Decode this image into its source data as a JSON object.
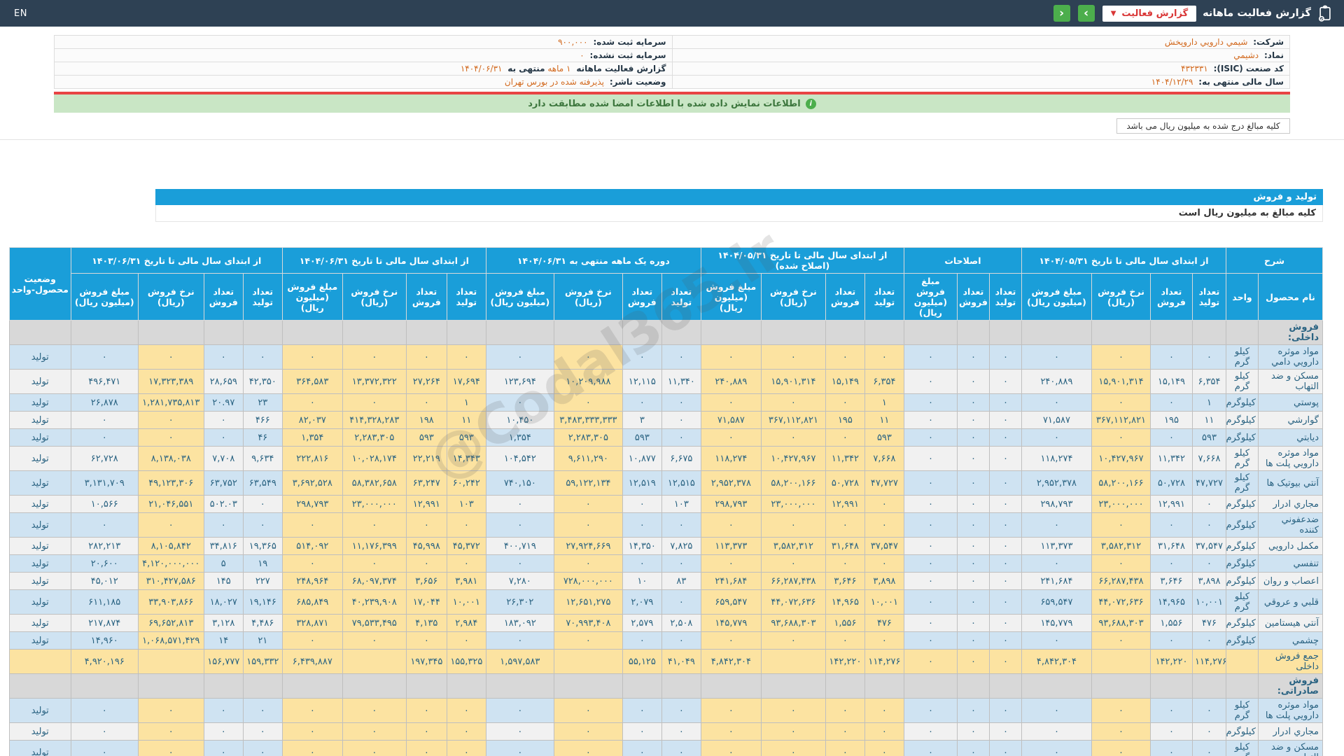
{
  "header": {
    "title": "گزارش فعالیت ماهانه",
    "dropdown_label": "گزارش فعالیت",
    "nav_next": "›",
    "nav_prev": "‹",
    "lang": "EN"
  },
  "company_info": {
    "rows": [
      {
        "r_label": "شرکت:",
        "r_value": "شیمي دارویي داروپخش",
        "l_label": "سرمایه ثبت شده:",
        "l_value": "۹۰۰,۰۰۰"
      },
      {
        "r_label": "نماد:",
        "r_value": "دشیمي",
        "l_label": "سرمایه ثبت نشده:",
        "l_value": "۰"
      },
      {
        "r_label": "کد صنعت (ISIC):",
        "r_value": "۴۳۲۳۳۱",
        "l_label": "گزارش فعالیت ماهانه",
        "l_value": "۱ ماهه",
        "l_label2": "منتهی به",
        "l_value2": "۱۴۰۴/۰۶/۳۱"
      },
      {
        "r_label": "سال مالی منتهی به:",
        "r_value": "۱۴۰۴/۱۲/۲۹",
        "l_label": "وضعیت ناشر:",
        "l_value": "پذیرفته شده در بورس تهران"
      }
    ]
  },
  "notices": {
    "signature": "اطلاعات نمایش داده شده با اطلاعات امضا شده مطابقت دارد",
    "million_entry": "کلیه مبالغ درج شده به میلیون ریال می باشد"
  },
  "section": {
    "title": "تولید و فروش",
    "subtitle": "کلیه مبالغ به میلیون ریال است"
  },
  "watermark": "@Codal365.ir",
  "colors": {
    "topbar": "#2e4154",
    "accent_blue": "#1a9ed9",
    "button_green": "#4cae4c",
    "alert_red": "#e84444",
    "value_orange": "#d2691e",
    "row_blue": "#cfe3f2",
    "highlight_yellow": "#fce3a1",
    "notice_green": "#c9e6c5"
  },
  "table": {
    "groups": [
      {
        "label": "شرح",
        "sub": [
          "نام محصول",
          "واحد"
        ]
      },
      {
        "label": "از ابتدای سال مالی تا تاریخ ۱۴۰۴/۰۵/۳۱",
        "sub": [
          "تعداد تولید",
          "تعداد فروش",
          "نرخ فروش (ریال)",
          "مبلغ فروش (میلیون ریال)"
        ]
      },
      {
        "label": "اصلاحات",
        "sub": [
          "تعداد تولید",
          "تعداد فروش",
          "مبلغ فروش (میلیون ریال)"
        ]
      },
      {
        "label": "از ابتدای سال مالی تا تاریخ ۱۴۰۴/۰۵/۳۱ (اصلاح شده)",
        "sub": [
          "تعداد تولید",
          "تعداد فروش",
          "نرخ فروش (ریال)",
          "مبلغ فروش (میلیون ریال)"
        ]
      },
      {
        "label": "دوره یک ماهه منتهی به ۱۴۰۴/۰۶/۳۱",
        "sub": [
          "تعداد تولید",
          "تعداد فروش",
          "نرخ فروش (ریال)",
          "مبلغ فروش (میلیون ریال)"
        ]
      },
      {
        "label": "از ابتدای سال مالی تا تاریخ ۱۴۰۴/۰۶/۳۱",
        "sub": [
          "تعداد تولید",
          "تعداد فروش",
          "نرخ فروش (ریال)",
          "مبلغ فروش (میلیون ریال)"
        ]
      },
      {
        "label": "از ابتدای سال مالی تا تاریخ ۱۴۰۳/۰۶/۳۱",
        "sub": [
          "تعداد تولید",
          "تعداد فروش",
          "نرخ فروش (ریال)",
          "مبلغ فروش (میلیون ریال)"
        ]
      },
      {
        "label": "وضعیت محصول-واحد",
        "sub": []
      }
    ],
    "rows": [
      {
        "t": "sec",
        "name": "فروش داخلی:"
      },
      {
        "t": "d",
        "shade": "b",
        "name": "مواد موثره دارویي دامي",
        "unit": "کیلو گرم",
        "st": "تولید",
        "c": [
          "۰",
          "۰",
          "۰",
          "۰",
          "۰",
          "۰",
          "۰",
          "۰",
          "۰",
          "۰",
          "۰",
          "۰",
          "۰",
          "۰",
          "۰",
          "۰",
          "۰",
          "۰",
          "۰",
          "۰",
          "۰",
          "۰",
          "۰"
        ]
      },
      {
        "t": "d",
        "shade": "w",
        "name": "مسکن و ضد التهاب",
        "unit": "کیلو گرم",
        "st": "تولید",
        "c": [
          "۶,۳۵۴",
          "۱۵,۱۴۹",
          "۱۵,۹۰۱,۳۱۴",
          "۲۴۰,۸۸۹",
          "۰",
          "۰",
          "۰",
          "۶,۳۵۴",
          "۱۵,۱۴۹",
          "۱۵,۹۰۱,۳۱۴",
          "۲۴۰,۸۸۹",
          "۱۱,۳۴۰",
          "۱۲,۱۱۵",
          "۱۰,۲۰۹,۹۸۸",
          "۱۲۳,۶۹۴",
          "۱۷,۶۹۴",
          "۲۷,۲۶۴",
          "۱۳,۳۷۲,۳۲۲",
          "۳۶۴,۵۸۳",
          "۴۲,۳۵۰",
          "۲۸,۶۵۹",
          "۱۷,۳۲۳,۳۸۹",
          "۴۹۶,۴۷۱"
        ]
      },
      {
        "t": "d",
        "shade": "b",
        "name": "پوستي",
        "unit": "کیلوگرم",
        "st": "تولید",
        "c": [
          "۱",
          "۰",
          "۰",
          "۰",
          "۰",
          "۰",
          "۰",
          "۱",
          "۰",
          "۰",
          "۰",
          "۰",
          "۰",
          "۰",
          "۰",
          "۱",
          "۰",
          "۰",
          "۰",
          "۲۳",
          "۲۰.۹۷",
          "۱,۲۸۱,۷۳۵,۸۱۳",
          "۲۶,۸۷۸"
        ]
      },
      {
        "t": "d",
        "shade": "w",
        "name": "گوارشي",
        "unit": "کیلوگرم",
        "st": "تولید",
        "c": [
          "۱۱",
          "۱۹۵",
          "۳۶۷,۱۱۲,۸۲۱",
          "۷۱,۵۸۷",
          "۰",
          "۰",
          "۰",
          "۱۱",
          "۱۹۵",
          "۳۶۷,۱۱۲,۸۲۱",
          "۷۱,۵۸۷",
          "۰",
          "۳",
          "۳,۴۸۳,۳۳۳,۳۳۳",
          "۱۰,۴۵۰",
          "۱۱",
          "۱۹۸",
          "۴۱۴,۳۲۸,۲۸۳",
          "۸۲,۰۳۷",
          "۴۶۶",
          "۰",
          "۰",
          "۰"
        ]
      },
      {
        "t": "d",
        "shade": "b",
        "name": "دیابتي",
        "unit": "کیلوگرم",
        "st": "تولید",
        "c": [
          "۵۹۳",
          "۰",
          "۰",
          "۰",
          "۰",
          "۰",
          "۰",
          "۵۹۳",
          "۰",
          "۰",
          "۰",
          "۰",
          "۵۹۳",
          "۲,۲۸۳,۳۰۵",
          "۱,۳۵۴",
          "۵۹۳",
          "۵۹۳",
          "۲,۲۸۳,۳۰۵",
          "۱,۳۵۴",
          "۴۶",
          "۰",
          "۰",
          "۰"
        ]
      },
      {
        "t": "d",
        "shade": "w",
        "name": "مواد موثره دارویي پلت ها",
        "unit": "کیلو گرم",
        "st": "تولید",
        "c": [
          "۷,۶۶۸",
          "۱۱,۳۴۲",
          "۱۰,۴۲۷,۹۶۷",
          "۱۱۸,۲۷۴",
          "۰",
          "۰",
          "۰",
          "۷,۶۶۸",
          "۱۱,۳۴۲",
          "۱۰,۴۲۷,۹۶۷",
          "۱۱۸,۲۷۴",
          "۶,۶۷۵",
          "۱۰,۸۷۷",
          "۹,۶۱۱,۲۹۰",
          "۱۰۴,۵۴۲",
          "۱۴,۳۴۳",
          "۲۲,۲۱۹",
          "۱۰,۰۲۸,۱۷۴",
          "۲۲۲,۸۱۶",
          "۹,۶۳۴",
          "۷,۷۰۸",
          "۸,۱۳۸,۰۳۸",
          "۶۲,۷۲۸"
        ]
      },
      {
        "t": "d",
        "shade": "b",
        "name": "آنتي بیوتیک ها",
        "unit": "کیلو گرم",
        "st": "تولید",
        "c": [
          "۴۷,۷۲۷",
          "۵۰,۷۲۸",
          "۵۸,۲۰۰,۱۶۶",
          "۲,۹۵۲,۳۷۸",
          "۰",
          "۰",
          "۰",
          "۴۷,۷۲۷",
          "۵۰,۷۲۸",
          "۵۸,۲۰۰,۱۶۶",
          "۲,۹۵۲,۳۷۸",
          "۱۲,۵۱۵",
          "۱۲,۵۱۹",
          "۵۹,۱۲۲,۱۳۴",
          "۷۴۰,۱۵۰",
          "۶۰,۲۴۲",
          "۶۳,۲۴۷",
          "۵۸,۳۸۲,۶۵۸",
          "۳,۶۹۲,۵۲۸",
          "۶۳,۵۴۹",
          "۶۳,۷۵۲",
          "۴۹,۱۲۳,۳۰۶",
          "۳,۱۳۱,۷۰۹"
        ]
      },
      {
        "t": "d",
        "shade": "w",
        "name": "مجاري ادرار",
        "unit": "کیلوگرم",
        "st": "تولید",
        "c": [
          "۰",
          "۱۲,۹۹۱",
          "۲۳,۰۰۰,۰۰۰",
          "۲۹۸,۷۹۳",
          "۰",
          "۰",
          "۰",
          "۰",
          "۱۲,۹۹۱",
          "۲۳,۰۰۰,۰۰۰",
          "۲۹۸,۷۹۳",
          "۱۰۳",
          "۰",
          "۰",
          "۰",
          "۱۰۳",
          "۱۲,۹۹۱",
          "۲۳,۰۰۰,۰۰۰",
          "۲۹۸,۷۹۳",
          "۰",
          "۵۰۲.۰۳",
          "۲۱,۰۴۶,۵۵۱",
          "۱۰,۵۶۶"
        ]
      },
      {
        "t": "d",
        "shade": "b",
        "name": "ضدعفوني کننده",
        "unit": "کیلوگرم",
        "st": "تولید",
        "c": [
          "۰",
          "۰",
          "۰",
          "۰",
          "۰",
          "۰",
          "۰",
          "۰",
          "۰",
          "۰",
          "۰",
          "۰",
          "۰",
          "۰",
          "۰",
          "۰",
          "۰",
          "۰",
          "۰",
          "۰",
          "۰",
          "۰",
          "۰"
        ]
      },
      {
        "t": "d",
        "shade": "w",
        "name": "مکمل دارویي",
        "unit": "کیلوگرم",
        "st": "تولید",
        "c": [
          "۳۷,۵۴۷",
          "۳۱,۶۴۸",
          "۳,۵۸۲,۳۱۲",
          "۱۱۳,۳۷۳",
          "۰",
          "۰",
          "۰",
          "۳۷,۵۴۷",
          "۳۱,۶۴۸",
          "۳,۵۸۲,۳۱۲",
          "۱۱۳,۳۷۳",
          "۷,۸۲۵",
          "۱۴,۳۵۰",
          "۲۷,۹۲۴,۶۶۹",
          "۴۰۰,۷۱۹",
          "۴۵,۳۷۲",
          "۴۵,۹۹۸",
          "۱۱,۱۷۶,۳۹۹",
          "۵۱۴,۰۹۲",
          "۱۹,۳۶۵",
          "۳۴,۸۱۶",
          "۸,۱۰۵,۸۴۲",
          "۲۸۲,۲۱۳"
        ]
      },
      {
        "t": "d",
        "shade": "b",
        "name": "تنفسي",
        "unit": "کیلوگرم",
        "st": "تولید",
        "c": [
          "۰",
          "۰",
          "۰",
          "۰",
          "۰",
          "۰",
          "۰",
          "۰",
          "۰",
          "۰",
          "۰",
          "۰",
          "۰",
          "۰",
          "۰",
          "۰",
          "۰",
          "۰",
          "۰",
          "۱۹",
          "۵",
          "۴,۱۲۰,۰۰۰,۰۰۰",
          "۲۰,۶۰۰"
        ]
      },
      {
        "t": "d",
        "shade": "w",
        "name": "اعصاب و روان",
        "unit": "کیلوگرم",
        "st": "تولید",
        "c": [
          "۳,۸۹۸",
          "۳,۶۴۶",
          "۶۶,۲۸۷,۴۳۸",
          "۲۴۱,۶۸۴",
          "۰",
          "۰",
          "۰",
          "۳,۸۹۸",
          "۳,۶۴۶",
          "۶۶,۲۸۷,۴۳۸",
          "۲۴۱,۶۸۴",
          "۸۳",
          "۱۰",
          "۷۲۸,۰۰۰,۰۰۰",
          "۷,۲۸۰",
          "۳,۹۸۱",
          "۳,۶۵۶",
          "۶۸,۰۹۷,۳۷۴",
          "۲۴۸,۹۶۴",
          "۲۲۷",
          "۱۴۵",
          "۳۱۰,۴۲۷,۵۸۶",
          "۴۵,۰۱۲"
        ]
      },
      {
        "t": "d",
        "shade": "b",
        "name": "قلبي و عروقي",
        "unit": "کیلو گرم",
        "st": "تولید",
        "c": [
          "۱۰,۰۰۱",
          "۱۴,۹۶۵",
          "۴۴,۰۷۲,۶۳۶",
          "۶۵۹,۵۴۷",
          "۰",
          "۰",
          "۰",
          "۱۰,۰۰۱",
          "۱۴,۹۶۵",
          "۴۴,۰۷۲,۶۳۶",
          "۶۵۹,۵۴۷",
          "۰",
          "۲,۰۷۹",
          "۱۲,۶۵۱,۲۷۵",
          "۲۶,۳۰۲",
          "۱۰,۰۰۱",
          "۱۷,۰۴۴",
          "۴۰,۲۳۹,۹۰۸",
          "۶۸۵,۸۴۹",
          "۱۹,۱۴۶",
          "۱۸,۰۲۷",
          "۳۳,۹۰۳,۸۶۶",
          "۶۱۱,۱۸۵"
        ]
      },
      {
        "t": "d",
        "shade": "w",
        "name": "آنتي هیستامین",
        "unit": "کیلوگرم",
        "st": "تولید",
        "c": [
          "۴۷۶",
          "۱,۵۵۶",
          "۹۳,۶۸۸,۳۰۳",
          "۱۴۵,۷۷۹",
          "۰",
          "۰",
          "۰",
          "۴۷۶",
          "۱,۵۵۶",
          "۹۳,۶۸۸,۳۰۳",
          "۱۴۵,۷۷۹",
          "۲,۵۰۸",
          "۲,۵۷۹",
          "۷۰,۹۹۳,۴۰۸",
          "۱۸۳,۰۹۲",
          "۲,۹۸۴",
          "۴,۱۳۵",
          "۷۹,۵۳۳,۴۹۵",
          "۳۲۸,۸۷۱",
          "۴,۴۸۶",
          "۳,۱۲۸",
          "۶۹,۶۵۲,۸۱۳",
          "۲۱۷,۸۷۴"
        ]
      },
      {
        "t": "d",
        "shade": "b",
        "name": "چشمي",
        "unit": "کیلوگرم",
        "st": "تولید",
        "c": [
          "۰",
          "۰",
          "۰",
          "۰",
          "۰",
          "۰",
          "۰",
          "۰",
          "۰",
          "۰",
          "۰",
          "۰",
          "۰",
          "۰",
          "۰",
          "۰",
          "۰",
          "۰",
          "۰",
          "۲۱",
          "۱۴",
          "۱,۰۶۸,۵۷۱,۴۲۹",
          "۱۴,۹۶۰"
        ]
      },
      {
        "t": "tot",
        "name": "جمع فروش داخلی",
        "unit": "",
        "st": "",
        "c": [
          "۱۱۴,۲۷۶",
          "۱۴۲,۲۲۰",
          "",
          "۴,۸۴۲,۳۰۴",
          "۰",
          "۰",
          "۰",
          "۱۱۴,۲۷۶",
          "۱۴۲,۲۲۰",
          "",
          "۴,۸۴۲,۳۰۴",
          "۴۱,۰۴۹",
          "۵۵,۱۲۵",
          "",
          "۱,۵۹۷,۵۸۳",
          "۱۵۵,۳۲۵",
          "۱۹۷,۳۴۵",
          "",
          "۶,۴۳۹,۸۸۷",
          "۱۵۹,۳۳۲",
          "۱۵۶,۷۷۷",
          "",
          "۴,۹۲۰,۱۹۶"
        ]
      },
      {
        "t": "sec",
        "name": "فروش صادراتی:"
      },
      {
        "t": "d",
        "shade": "b",
        "name": "مواد موثره دارویي پلت ها",
        "unit": "کیلو گرم",
        "st": "تولید",
        "c": [
          "۰",
          "۰",
          "۰",
          "۰",
          "۰",
          "۰",
          "۰",
          "۰",
          "۰",
          "۰",
          "۰",
          "۰",
          "۰",
          "۰",
          "۰",
          "۰",
          "۰",
          "۰",
          "۰",
          "۰",
          "۰",
          "۰",
          "۰"
        ]
      },
      {
        "t": "d",
        "shade": "w",
        "name": "مجاري ادرار",
        "unit": "کیلوگرم",
        "st": "تولید",
        "c": [
          "۰",
          "۰",
          "۰",
          "۰",
          "۰",
          "۰",
          "۰",
          "۰",
          "۰",
          "۰",
          "۰",
          "۰",
          "۰",
          "۰",
          "۰",
          "۰",
          "۰",
          "۰",
          "۰",
          "۰",
          "۰",
          "۰",
          "۰"
        ]
      },
      {
        "t": "d",
        "shade": "b",
        "name": "مسکن و ضد التهاب",
        "unit": "کیلو گرم",
        "st": "تولید",
        "c": [
          "۰",
          "۰",
          "۰",
          "۰",
          "۰",
          "۰",
          "۰",
          "۰",
          "۰",
          "۰",
          "۰",
          "۰",
          "۰",
          "۰",
          "۰",
          "۰",
          "۰",
          "۰",
          "۰",
          "۰",
          "۰",
          "۰",
          "۰"
        ]
      }
    ]
  }
}
